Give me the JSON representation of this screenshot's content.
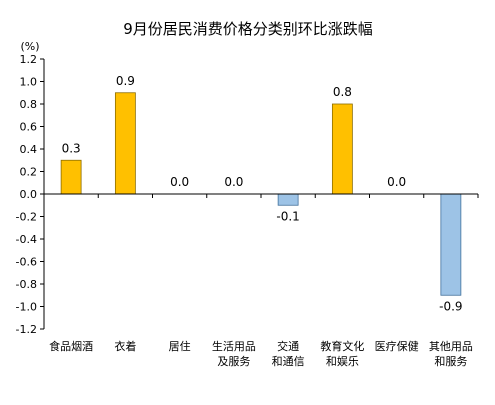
{
  "chart_data": {
    "type": "bar",
    "title": "9月份居民消费价格分类别环比涨跌幅",
    "unit_label": "(%)",
    "categories": [
      [
        "食品烟酒"
      ],
      [
        "衣着"
      ],
      [
        "居住"
      ],
      [
        "生活用品",
        "及服务"
      ],
      [
        "交通",
        "和通信"
      ],
      [
        "教育文化",
        "和娱乐"
      ],
      [
        "医疗保健"
      ],
      [
        "其他用品",
        "和服务"
      ]
    ],
    "values": [
      0.3,
      0.9,
      0.0,
      0.0,
      -0.1,
      0.8,
      0.0,
      -0.9
    ],
    "value_labels": [
      "0.3",
      "0.9",
      "0.0",
      "0.0",
      "-0.1",
      "0.8",
      "0.0",
      "-0.9"
    ],
    "ylim": [
      -1.2,
      1.2
    ],
    "yticks": [
      1.2,
      1.0,
      0.8,
      0.6,
      0.4,
      0.2,
      0.0,
      -0.2,
      -0.4,
      -0.6,
      -0.8,
      -1.0,
      -1.2
    ],
    "ytick_labels": [
      "1.2",
      "1.0",
      "0.8",
      "0.6",
      "0.4",
      "0.2",
      "0.0",
      "-0.2",
      "-0.4",
      "-0.6",
      "-0.8",
      "-1.0",
      "-1.2"
    ],
    "colors": {
      "positive_fill": "#FFC000",
      "positive_stroke": "#8C6D00",
      "negative_fill": "#9DC3E6",
      "negative_stroke": "#41719C",
      "axis": "#000000",
      "text": "#000000"
    },
    "grid": false,
    "legend": "none"
  }
}
